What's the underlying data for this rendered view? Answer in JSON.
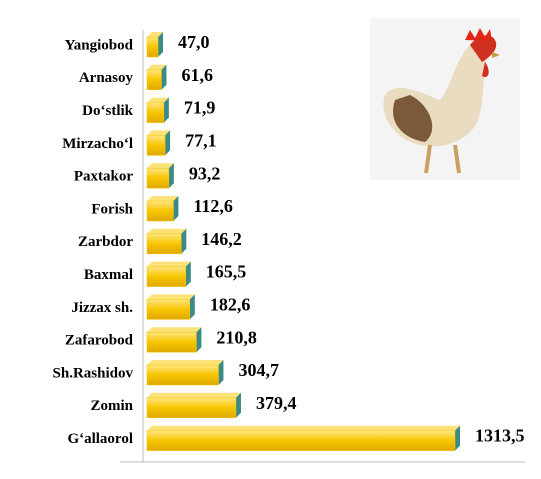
{
  "chart_data": {
    "type": "bar",
    "orientation": "horizontal",
    "categories": [
      "Yangiobod",
      "Arnasoy",
      "Do‘stlik",
      "Mirzacho‘l",
      "Paxtakor",
      "Forish",
      "Zarbdor",
      "Baxmal",
      "Jizzax sh.",
      "Zafarobod",
      "Sh.Rashidov",
      "Zomin",
      "G‘allaorol"
    ],
    "values": [
      47.0,
      61.6,
      71.9,
      77.1,
      93.2,
      112.6,
      146.2,
      165.5,
      182.6,
      210.8,
      304.7,
      379.4,
      1313.5
    ],
    "value_labels": [
      "47,0",
      "61,6",
      "71,9",
      "77,1",
      "93,2",
      "112,6",
      "146,2",
      "165,5",
      "182,6",
      "210,8",
      "304,7",
      "379,4",
      "1313,5"
    ],
    "color": "#f7c500",
    "xlim": [
      0,
      1500
    ]
  }
}
